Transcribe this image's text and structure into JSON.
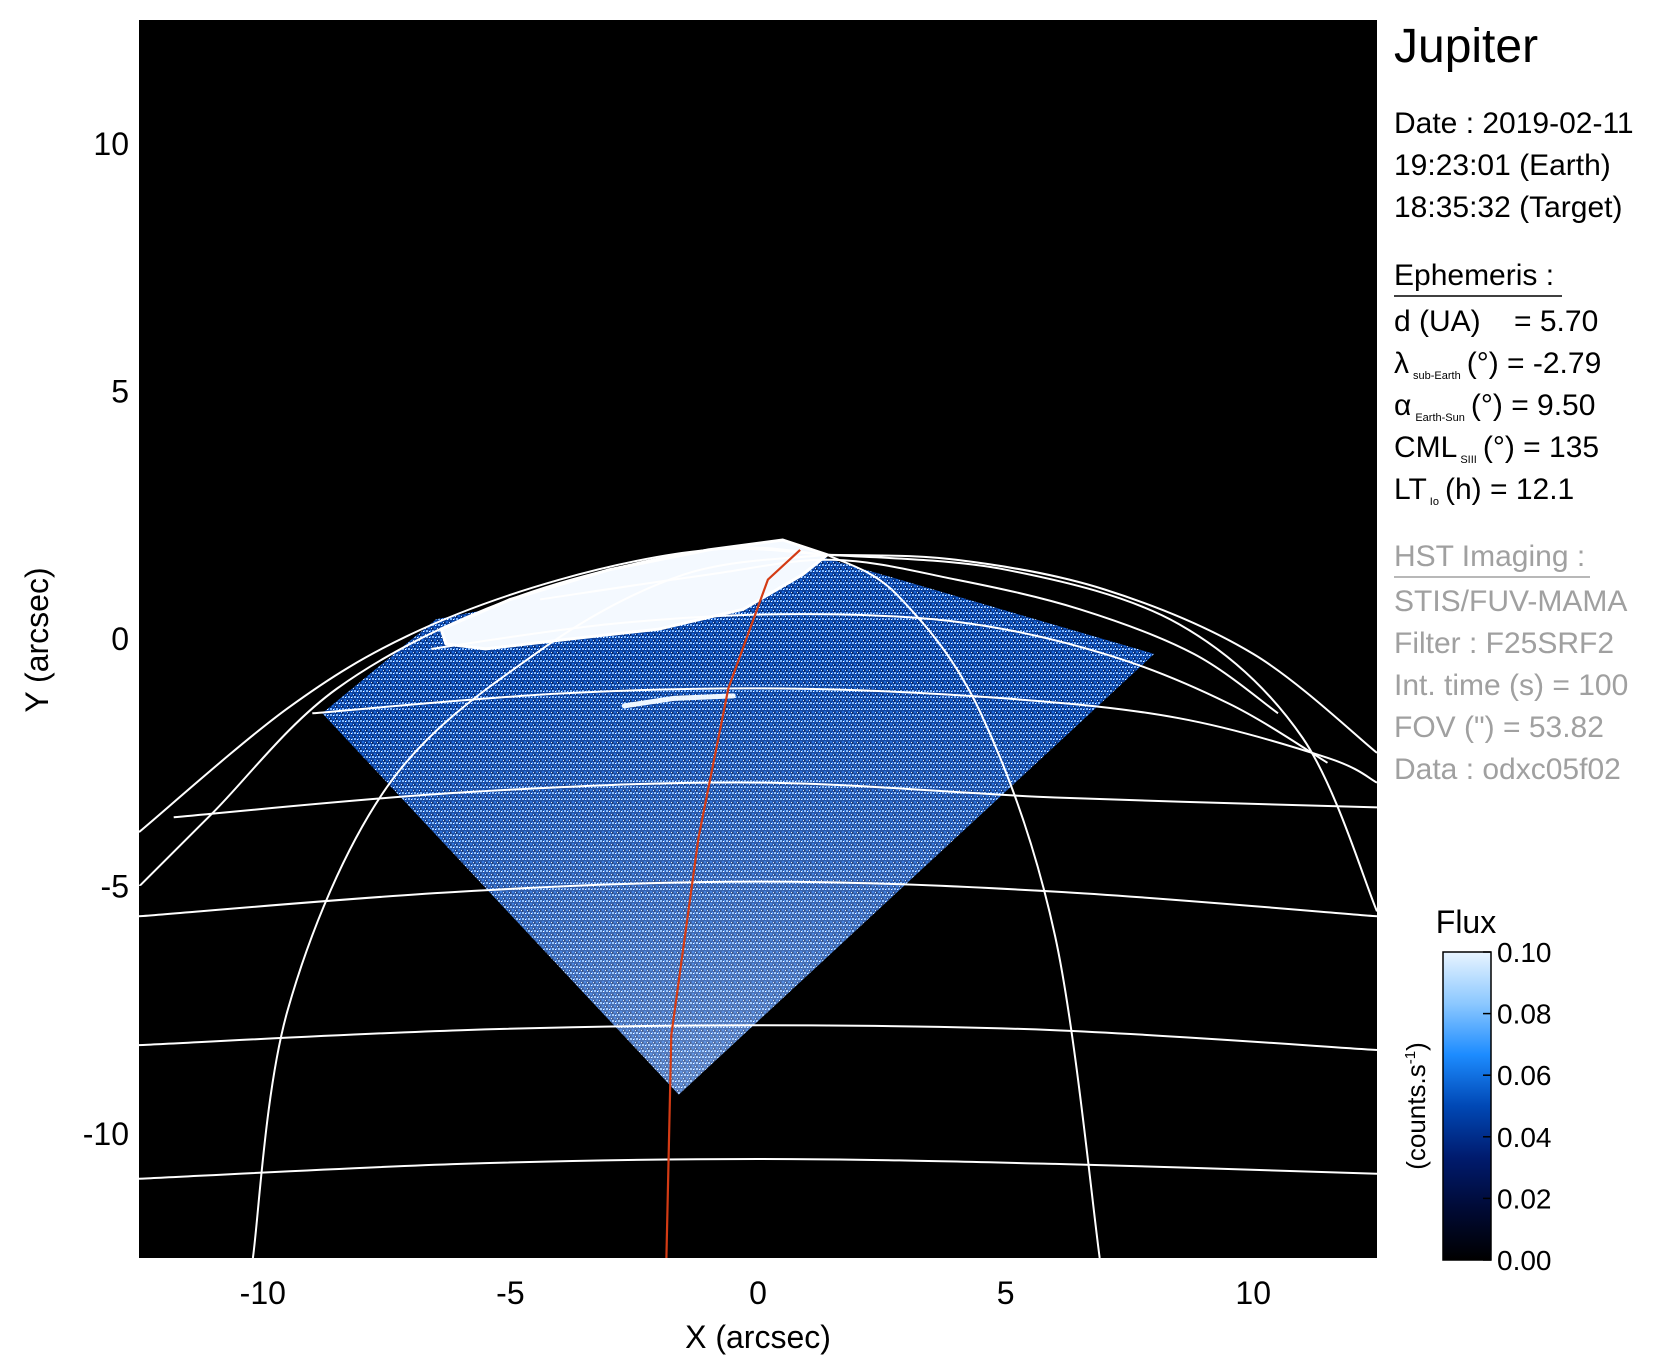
{
  "chart_data": {
    "type": "heatmap",
    "xlabel": "X (arcsec)",
    "ylabel": "Y (arcsec)",
    "xlim": [
      -12.5,
      12.5
    ],
    "ylim": [
      -12.5,
      12.5
    ],
    "xticks": [
      -10,
      -5,
      0,
      5,
      10
    ],
    "yticks": [
      10,
      5,
      0,
      -5,
      -10
    ],
    "xtick_labels": [
      "-10",
      "-5",
      "0",
      "5",
      "10"
    ],
    "ytick_labels": [
      "10",
      "5",
      "0",
      "-5",
      "-10"
    ],
    "background_color": "#000000",
    "grid_color": "#ffffff",
    "meridian_color": "#d43b14",
    "observed_region": [
      [
        -8.8,
        -1.5
      ],
      [
        -6.5,
        0.4
      ],
      [
        0.8,
        1.8
      ],
      [
        8.0,
        -0.3
      ],
      [
        -1.6,
        -9.2
      ]
    ],
    "bright_aurora": [
      [
        -6.4,
        0.2
      ],
      [
        -5.0,
        0.8
      ],
      [
        -3.0,
        1.4
      ],
      [
        -1.0,
        1.8
      ],
      [
        0.5,
        2.0
      ],
      [
        1.4,
        1.7
      ],
      [
        0.9,
        1.3
      ],
      [
        -0.3,
        0.6
      ],
      [
        -2.0,
        0.2
      ],
      [
        -3.8,
        0.0
      ],
      [
        -5.5,
        -0.2
      ],
      [
        -6.3,
        -0.1
      ]
    ],
    "aurora_arc": [
      [
        -2.7,
        -1.35
      ],
      [
        -1.7,
        -1.2
      ],
      [
        -0.5,
        -1.15
      ]
    ],
    "grid_top": [
      1.4,
      1.7
    ],
    "grid_latitudes": [
      [
        [
          -4.4,
          0.8
        ],
        [
          -1.0,
          1.3
        ],
        [
          1.5,
          1.6
        ],
        [
          4.0,
          1.2
        ],
        [
          6.5,
          0.6
        ],
        [
          8.8,
          -0.3
        ],
        [
          10.5,
          -1.5
        ]
      ],
      [
        [
          -6.6,
          -0.2
        ],
        [
          -3.0,
          0.3
        ],
        [
          0.5,
          0.5
        ],
        [
          4.0,
          0.35
        ],
        [
          7.0,
          -0.3
        ],
        [
          9.5,
          -1.3
        ],
        [
          11.5,
          -2.5
        ]
      ],
      [
        [
          -9.0,
          -1.5
        ],
        [
          -4.0,
          -1.1
        ],
        [
          0.5,
          -1.0
        ],
        [
          5.0,
          -1.2
        ],
        [
          8.5,
          -1.6
        ],
        [
          11.5,
          -2.4
        ],
        [
          12.5,
          -2.9
        ]
      ],
      [
        [
          -11.8,
          -3.6
        ],
        [
          -6.0,
          -3.1
        ],
        [
          0.0,
          -2.9
        ],
        [
          6.0,
          -3.2
        ],
        [
          12.5,
          -3.4
        ]
      ],
      [
        [
          -12.5,
          -5.6
        ],
        [
          -6.0,
          -5.1
        ],
        [
          0.0,
          -4.9
        ],
        [
          6.0,
          -5.1
        ],
        [
          12.5,
          -5.6
        ]
      ],
      [
        [
          -12.5,
          -8.2
        ],
        [
          -6.0,
          -7.9
        ],
        [
          0.0,
          -7.8
        ],
        [
          6.0,
          -7.9
        ],
        [
          12.5,
          -8.3
        ]
      ],
      [
        [
          -12.5,
          -10.9
        ],
        [
          -6.0,
          -10.6
        ],
        [
          0.0,
          -10.5
        ],
        [
          6.0,
          -10.6
        ],
        [
          12.5,
          -10.8
        ]
      ]
    ],
    "grid_meridians": [
      [
        [
          -12.5,
          -3.9
        ],
        [
          -9.5,
          -1.4
        ],
        [
          -7.0,
          0.1
        ],
        [
          -4.0,
          1.2
        ],
        [
          -1.0,
          1.8
        ],
        [
          1.4,
          1.7
        ]
      ],
      [
        [
          -12.5,
          -5.0
        ],
        [
          -11.0,
          -3.5
        ],
        [
          -8.5,
          -1.0
        ],
        [
          -5.0,
          0.8
        ],
        [
          -1.0,
          1.8
        ],
        [
          1.4,
          1.7
        ]
      ],
      [
        [
          -10.2,
          -12.5
        ],
        [
          -9.5,
          -7.5
        ],
        [
          -7.5,
          -3.0
        ],
        [
          -4.5,
          -0.3
        ],
        [
          -1.5,
          1.3
        ],
        [
          1.4,
          1.7
        ]
      ],
      [
        [
          6.9,
          -12.5
        ],
        [
          6.0,
          -6.0
        ],
        [
          4.5,
          -1.5
        ],
        [
          2.8,
          0.9
        ],
        [
          1.4,
          1.7
        ]
      ],
      [
        [
          12.5,
          -5.5
        ],
        [
          11.0,
          -2.0
        ],
        [
          8.5,
          0.3
        ],
        [
          5.0,
          1.4
        ],
        [
          1.4,
          1.7
        ]
      ],
      [
        [
          12.5,
          -2.3
        ],
        [
          10.0,
          -0.3
        ],
        [
          7.0,
          1.0
        ],
        [
          4.0,
          1.6
        ],
        [
          1.4,
          1.7
        ]
      ]
    ],
    "central_meridian": [
      [
        -1.85,
        -12.5
      ],
      [
        -1.75,
        -8.0
      ],
      [
        -1.2,
        -4.0
      ],
      [
        -0.6,
        -1.0
      ],
      [
        0.2,
        1.2
      ],
      [
        0.85,
        1.8
      ]
    ],
    "colorbar": {
      "title": "Flux",
      "label": "(counts.s",
      "label_sup": "-1",
      "label_close": ")",
      "ticks": [
        "0.10",
        "0.08",
        "0.06",
        "0.04",
        "0.02",
        "0.00"
      ],
      "range": [
        0.0,
        0.1
      ],
      "colors": [
        "#000000",
        "#000a35",
        "#001b6e",
        "#0048b5",
        "#1d8cff",
        "#8cc8ff",
        "#e8f4ff"
      ]
    }
  },
  "side_panel": {
    "planet": "Jupiter",
    "date_line": "Date : 2019-02-11",
    "earth_time": "19:23:01 (Earth)",
    "target_time": "18:35:32 (Target)",
    "ephemeris_heading": "Ephemeris :",
    "distance": "d (UA)    = 5.70",
    "lambda": {
      "symbol": "λ",
      "sub": "sub-Earth",
      "rest": "(°) = -2.79"
    },
    "alpha": {
      "symbol": "α",
      "sub": "Earth-Sun",
      "rest": "(°) = 9.50"
    },
    "cml": {
      "symbol": "CML",
      "sub": "SIII",
      "rest": "(°) = 135"
    },
    "lt": {
      "symbol": "LT",
      "sub": "Io",
      "rest": "(h) = 12.1"
    },
    "hst_heading": "HST Imaging :",
    "instrument": "STIS/FUV-MAMA",
    "filter": "Filter : F25SRF2",
    "int_time": "Int. time (s) = 100",
    "fov": "FOV (\") = 53.82",
    "dataset": "Data : odxc05f02",
    "hst_color": "#a0a0a0"
  }
}
